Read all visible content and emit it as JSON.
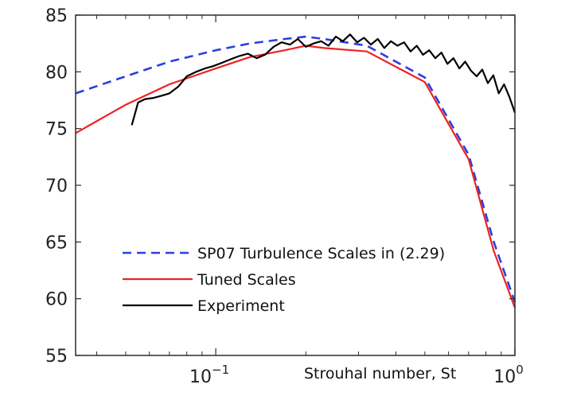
{
  "chart_data": {
    "type": "line",
    "title": "",
    "xlabel": "Strouhal number,  St",
    "ylabel": "",
    "xscale": "log",
    "xlim": [
      0.034,
      1.0
    ],
    "ylim": [
      55,
      85
    ],
    "yticks": [
      55,
      60,
      65,
      70,
      75,
      80,
      85
    ],
    "ytick_labels": [
      "55",
      "60",
      "65",
      "70",
      "75",
      "80",
      "85"
    ],
    "xticks": [
      {
        "value": 0.1,
        "base": "10",
        "exp": "−1"
      },
      {
        "value": 1.0,
        "base": "10",
        "exp": "0"
      }
    ],
    "grid": false,
    "legend_position": "bottom-left",
    "series": [
      {
        "name": "SP07 Turbulence Scales in (2.29)",
        "color": "#2a3fe0",
        "style": "dashed",
        "x": [
          0.034,
          0.05,
          0.07,
          0.1,
          0.13,
          0.17,
          0.2,
          0.23,
          0.32,
          0.5,
          0.7,
          0.85,
          1.0
        ],
        "y": [
          78.1,
          79.6,
          80.9,
          81.9,
          82.5,
          82.9,
          83.1,
          82.9,
          82.3,
          79.5,
          72.7,
          65.0,
          59.7
        ]
      },
      {
        "name": "Tuned Scales",
        "color": "#ee2222",
        "style": "solid",
        "x": [
          0.034,
          0.05,
          0.07,
          0.1,
          0.13,
          0.17,
          0.2,
          0.23,
          0.32,
          0.5,
          0.7,
          0.85,
          1.0
        ],
        "y": [
          74.6,
          77.1,
          78.9,
          80.3,
          81.3,
          81.9,
          82.3,
          82.1,
          81.8,
          79.1,
          72.3,
          64.2,
          59.2
        ]
      },
      {
        "name": "Experiment",
        "color": "#000000",
        "style": "solid",
        "x": [
          0.0524,
          0.055,
          0.058,
          0.062,
          0.066,
          0.07,
          0.075,
          0.08,
          0.086,
          0.092,
          0.098,
          0.105,
          0.112,
          0.12,
          0.128,
          0.137,
          0.146,
          0.156,
          0.166,
          0.177,
          0.188,
          0.2,
          0.212,
          0.225,
          0.238,
          0.252,
          0.266,
          0.281,
          0.297,
          0.313,
          0.33,
          0.348,
          0.366,
          0.385,
          0.405,
          0.426,
          0.448,
          0.47,
          0.493,
          0.517,
          0.542,
          0.568,
          0.595,
          0.623,
          0.652,
          0.682,
          0.713,
          0.745,
          0.778,
          0.812,
          0.847,
          0.883,
          0.92,
          0.958,
          1.0
        ],
        "y": [
          75.3,
          77.3,
          77.6,
          77.7,
          77.9,
          78.1,
          78.7,
          79.6,
          80.0,
          80.3,
          80.5,
          80.8,
          81.1,
          81.4,
          81.6,
          81.2,
          81.5,
          82.2,
          82.6,
          82.4,
          82.9,
          82.2,
          82.5,
          82.7,
          82.3,
          83.1,
          82.7,
          83.3,
          82.6,
          83.0,
          82.4,
          82.9,
          82.1,
          82.7,
          82.3,
          82.6,
          81.8,
          82.3,
          81.5,
          81.9,
          81.2,
          81.7,
          80.7,
          81.2,
          80.3,
          80.9,
          80.1,
          79.6,
          80.2,
          79.0,
          79.7,
          78.1,
          78.9,
          77.8,
          76.4
        ]
      }
    ]
  }
}
